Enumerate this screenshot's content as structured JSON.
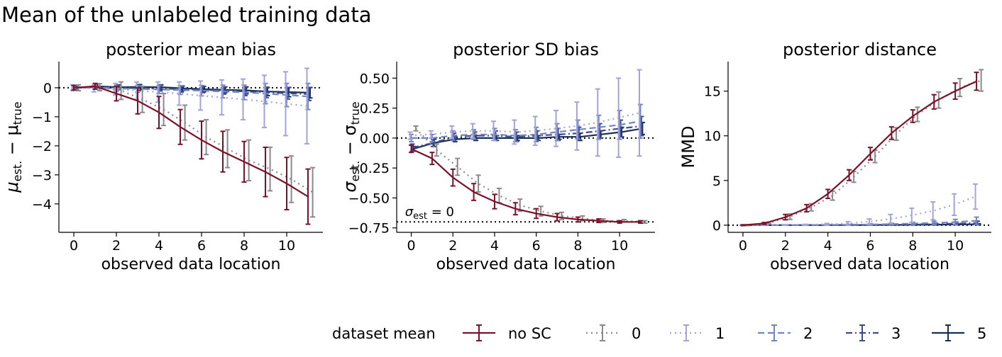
{
  "figure_title": "Mean of the unlabeled training data",
  "legend": {
    "title": "dataset mean",
    "entries": [
      {
        "label": "no SC",
        "color": "#7c1229",
        "dash": "solid"
      },
      {
        "label": "0",
        "color": "#8a8a8a",
        "dash": "dotted"
      },
      {
        "label": "1",
        "color": "#a3a3dc",
        "dash": "dotted"
      },
      {
        "label": "2",
        "color": "#7285c3",
        "dash": "dashed"
      },
      {
        "label": "3",
        "color": "#3f4a8f",
        "dash": "dashdot"
      },
      {
        "label": "5",
        "color": "#17304f",
        "dash": "solid"
      }
    ]
  },
  "chart_data": [
    {
      "type": "line",
      "title": "posterior mean bias",
      "xlabel": "observed data location",
      "ylabel": "μ_est. − μ_true",
      "ylabel_main": "μ",
      "ylabel_sub1": "est.",
      "ylabel_minus": " − μ",
      "ylabel_sub2": "true",
      "xlim": [
        -0.7,
        11.7
      ],
      "ylim": [
        -4.98,
        0.9
      ],
      "xticks": [
        0,
        2,
        4,
        6,
        8,
        10
      ],
      "yticks": [
        0,
        -1,
        -2,
        -3,
        -4
      ],
      "yticklabels": [
        "0",
        "−1",
        "−2",
        "−3",
        "−4"
      ],
      "hline": 0,
      "x": [
        0,
        1,
        2,
        3,
        4,
        5,
        6,
        7,
        8,
        9,
        10,
        11
      ],
      "series": [
        {
          "name": "no SC",
          "values": [
            0,
            0.05,
            -0.2,
            -0.45,
            -0.85,
            -1.35,
            -1.8,
            -2.2,
            -2.55,
            -2.9,
            -3.3,
            -3.75
          ],
          "err": [
            0.08,
            0.1,
            0.25,
            0.45,
            0.55,
            0.6,
            0.65,
            0.7,
            0.7,
            0.85,
            0.9,
            0.95
          ]
        },
        {
          "name": "0",
          "values": [
            0,
            0.02,
            -0.1,
            -0.4,
            -0.75,
            -1.2,
            -1.7,
            -2.1,
            -2.5,
            -2.8,
            -3.15,
            -3.6
          ],
          "err": [
            0.1,
            0.12,
            0.3,
            0.45,
            0.55,
            0.6,
            0.6,
            0.65,
            0.7,
            0.75,
            0.8,
            0.85
          ]
        },
        {
          "name": "1",
          "values": [
            0,
            -0.02,
            -0.05,
            -0.1,
            -0.15,
            -0.2,
            -0.27,
            -0.33,
            -0.4,
            -0.47,
            -0.55,
            -0.63
          ],
          "err": [
            0.1,
            0.12,
            0.2,
            0.3,
            0.35,
            0.4,
            0.5,
            0.6,
            0.7,
            0.9,
            1.1,
            1.3
          ]
        },
        {
          "name": "2",
          "values": [
            0,
            0.01,
            -0.02,
            -0.04,
            -0.06,
            -0.08,
            -0.1,
            -0.13,
            -0.16,
            -0.2,
            -0.25,
            -0.3
          ],
          "err": [
            0.05,
            0.05,
            0.1,
            0.12,
            0.14,
            0.15,
            0.18,
            0.22,
            0.25,
            0.35,
            0.4,
            0.45
          ]
        },
        {
          "name": "3",
          "values": [
            0,
            0.02,
            0,
            -0.02,
            -0.03,
            -0.05,
            -0.07,
            -0.1,
            -0.13,
            -0.16,
            -0.19,
            -0.22
          ],
          "err": [
            0.04,
            0.04,
            0.06,
            0.08,
            0.08,
            0.1,
            0.1,
            0.12,
            0.14,
            0.18,
            0.2,
            0.22
          ]
        },
        {
          "name": "5",
          "values": [
            0,
            0.05,
            0.02,
            0.03,
            0.02,
            -0.02,
            -0.05,
            -0.07,
            -0.09,
            -0.13,
            -0.15,
            -0.17
          ],
          "err": [
            0.04,
            0.08,
            0.08,
            0.08,
            0.08,
            0.08,
            0.1,
            0.1,
            0.12,
            0.14,
            0.16,
            0.18
          ]
        }
      ]
    },
    {
      "type": "line",
      "title": "posterior SD bias",
      "xlabel": "observed data location",
      "ylabel": "σ_est. − σ_true",
      "ylabel_main": "σ",
      "ylabel_sub1": "est.",
      "ylabel_minus": " − σ",
      "ylabel_sub2": "true",
      "annotation": "σ_est = 0",
      "annotation_main": "σ",
      "annotation_sub": "est",
      "annotation_rest": " = 0",
      "annotation_at": [
        -0.3,
        -0.65
      ],
      "xlim": [
        -0.7,
        11.7
      ],
      "ylim": [
        -0.787,
        0.638
      ],
      "xticks": [
        0,
        2,
        4,
        6,
        8,
        10
      ],
      "yticks": [
        0.5,
        0.25,
        0,
        -0.25,
        -0.5,
        -0.75
      ],
      "yticklabels": [
        "0.50",
        "0.25",
        "0.00",
        "−0.25",
        "−0.50",
        "−0.75"
      ],
      "hline": 0,
      "hline2": -0.7,
      "x": [
        0,
        1,
        2,
        3,
        4,
        5,
        6,
        7,
        8,
        9,
        10,
        11
      ],
      "series": [
        {
          "name": "no SC",
          "values": [
            -0.09,
            -0.17,
            -0.33,
            -0.45,
            -0.53,
            -0.59,
            -0.63,
            -0.66,
            -0.68,
            -0.69,
            -0.7,
            -0.7
          ],
          "err": [
            0.03,
            0.05,
            0.07,
            0.07,
            0.06,
            0.05,
            0.04,
            0.03,
            0.02,
            0.015,
            0.01,
            0.01
          ]
        },
        {
          "name": "0",
          "values": [
            0.08,
            -0.1,
            -0.24,
            -0.38,
            -0.48,
            -0.56,
            -0.61,
            -0.65,
            -0.67,
            -0.69,
            -0.69,
            -0.7
          ],
          "err": [
            0.02,
            0.05,
            0.07,
            0.07,
            0.06,
            0.05,
            0.04,
            0.03,
            0.02,
            0.015,
            0.01,
            0.01
          ]
        },
        {
          "name": "1",
          "values": [
            0.02,
            0.03,
            0.05,
            0.06,
            0.06,
            0.05,
            0.06,
            0.08,
            0.1,
            0.13,
            0.17,
            0.21
          ],
          "err": [
            0.03,
            0.03,
            0.05,
            0.06,
            0.08,
            0.1,
            0.12,
            0.15,
            0.2,
            0.28,
            0.33,
            0.36
          ]
        },
        {
          "name": "2",
          "values": [
            0,
            0,
            0.02,
            0.03,
            0.03,
            0.02,
            0.03,
            0.05,
            0.07,
            0.09,
            0.11,
            0.14
          ],
          "err": [
            0.03,
            0.03,
            0.04,
            0.04,
            0.05,
            0.05,
            0.06,
            0.07,
            0.08,
            0.1,
            0.12,
            0.14
          ]
        },
        {
          "name": "3",
          "values": [
            -0.08,
            -0.04,
            0.01,
            0.02,
            0.02,
            0.01,
            0.02,
            0.03,
            0.04,
            0.06,
            0.08,
            0.1
          ],
          "err": [
            0.03,
            0.03,
            0.03,
            0.03,
            0.04,
            0.04,
            0.04,
            0.05,
            0.05,
            0.06,
            0.07,
            0.08
          ]
        },
        {
          "name": "5",
          "values": [
            -0.09,
            -0.04,
            -0.01,
            0,
            0,
            0,
            0,
            0.01,
            0.01,
            0.03,
            0.05,
            0.08
          ],
          "err": [
            0.02,
            0.03,
            0.02,
            0.02,
            0.02,
            0.02,
            0.02,
            0.02,
            0.03,
            0.03,
            0.04,
            0.05
          ]
        }
      ]
    },
    {
      "type": "line",
      "title": "posterior distance",
      "xlabel": "observed data location",
      "ylabel": "MMD",
      "xlim": [
        -0.7,
        11.7
      ],
      "ylim": [
        -0.8,
        18.3
      ],
      "xticks": [
        0,
        2,
        4,
        6,
        8,
        10
      ],
      "yticks": [
        0,
        5,
        10,
        15
      ],
      "yticklabels": [
        "0",
        "5",
        "10",
        "15"
      ],
      "hline": 0,
      "x": [
        0,
        1,
        2,
        3,
        4,
        5,
        6,
        7,
        8,
        9,
        10,
        11
      ],
      "series": [
        {
          "name": "no SC",
          "values": [
            0,
            0.2,
            0.9,
            1.9,
            3.5,
            5.6,
            8.0,
            10.3,
            12.2,
            13.8,
            15.0,
            16.1
          ],
          "err": [
            0.05,
            0.1,
            0.3,
            0.4,
            0.5,
            0.6,
            0.7,
            0.7,
            0.7,
            0.8,
            0.9,
            1.0
          ]
        },
        {
          "name": "0",
          "values": [
            0,
            0.25,
            0.95,
            2.0,
            3.3,
            5.4,
            7.7,
            10.2,
            12.4,
            14.0,
            15.4,
            16.2
          ],
          "err": [
            0.05,
            0.1,
            0.3,
            0.4,
            0.5,
            0.6,
            0.7,
            0.7,
            0.8,
            0.9,
            1.0,
            1.2
          ]
        },
        {
          "name": "1",
          "values": [
            0,
            0.02,
            0.03,
            0.05,
            0.1,
            0.2,
            0.4,
            0.7,
            1.1,
            1.6,
            2.3,
            3.2
          ],
          "err": [
            0.02,
            0.02,
            0.03,
            0.05,
            0.1,
            0.2,
            0.3,
            0.5,
            0.8,
            1.0,
            1.2,
            1.4
          ]
        },
        {
          "name": "2",
          "values": [
            0,
            0.01,
            0.01,
            0.02,
            0.03,
            0.05,
            0.08,
            0.12,
            0.18,
            0.25,
            0.35,
            0.5
          ],
          "err": [
            0.01,
            0.01,
            0.02,
            0.02,
            0.03,
            0.05,
            0.08,
            0.1,
            0.15,
            0.2,
            0.3,
            0.4
          ]
        },
        {
          "name": "3",
          "values": [
            0,
            0,
            0.01,
            0.01,
            0.02,
            0.03,
            0.04,
            0.06,
            0.08,
            0.12,
            0.18,
            0.25
          ],
          "err": [
            0.01,
            0.01,
            0.01,
            0.02,
            0.02,
            0.03,
            0.04,
            0.05,
            0.06,
            0.1,
            0.15,
            0.2
          ]
        },
        {
          "name": "5",
          "values": [
            0,
            0,
            0,
            0.01,
            0.01,
            0.01,
            0.02,
            0.03,
            0.04,
            0.06,
            0.08,
            0.1
          ],
          "err": [
            0.01,
            0.01,
            0.01,
            0.01,
            0.01,
            0.02,
            0.02,
            0.03,
            0.03,
            0.04,
            0.05,
            0.06
          ]
        }
      ]
    }
  ]
}
